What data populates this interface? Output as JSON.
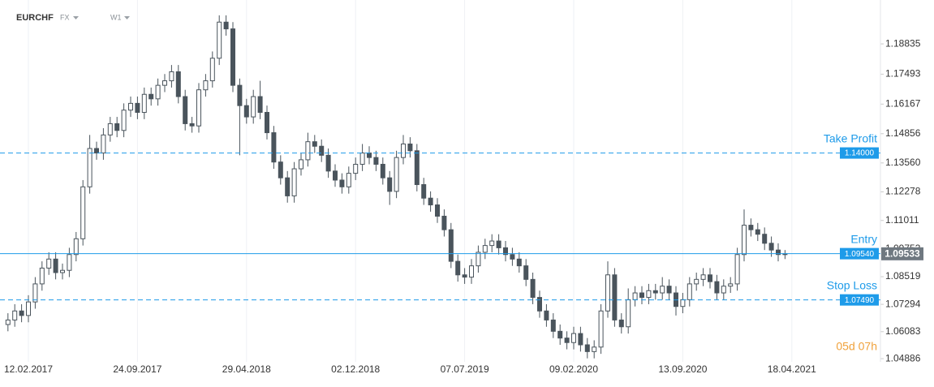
{
  "header": {
    "symbol": "EURCHF",
    "market": "FX",
    "timeframe": "W1"
  },
  "countdown": "05d 07h",
  "chart_data": {
    "type": "candlestick",
    "up_color": "#ffffff",
    "down_color": "#4a545c",
    "outline_color": "#4a545c",
    "grid": true,
    "categories": [
      null,
      null,
      null,
      "12.02.2017",
      null,
      null,
      null,
      null,
      null,
      null,
      null,
      null,
      null,
      null,
      null,
      null,
      null,
      null,
      null,
      "24.09.2017",
      null,
      null,
      null,
      null,
      null,
      null,
      null,
      null,
      null,
      null,
      null,
      null,
      null,
      null,
      null,
      "29.04.2018",
      null,
      null,
      null,
      null,
      null,
      null,
      null,
      null,
      null,
      null,
      null,
      null,
      null,
      null,
      null,
      "02.12.2018",
      null,
      null,
      null,
      null,
      null,
      null,
      null,
      null,
      null,
      null,
      null,
      null,
      null,
      null,
      null,
      "07.07.2019",
      null,
      null,
      null,
      null,
      null,
      null,
      null,
      null,
      null,
      null,
      null,
      null,
      null,
      null,
      null,
      "09.02.2020",
      null,
      null,
      null,
      null,
      null,
      null,
      null,
      null,
      null,
      null,
      null,
      null,
      null,
      null,
      null,
      "13.09.2020",
      null,
      null,
      null,
      null,
      null,
      null,
      null,
      null,
      null,
      null,
      null,
      null,
      null,
      null,
      null,
      "18.04.2021"
    ],
    "open": [
      1.064,
      1.066,
      1.07,
      1.068,
      1.074,
      1.082,
      1.089,
      1.093,
      1.087,
      1.088,
      1.095,
      1.102,
      1.125,
      1.142,
      1.14,
      1.148,
      1.153,
      1.15,
      1.159,
      1.162,
      1.158,
      1.166,
      1.164,
      1.17,
      1.172,
      1.176,
      1.165,
      1.153,
      1.152,
      1.168,
      1.172,
      1.182,
      1.198,
      1.195,
      1.17,
      1.161,
      1.156,
      1.165,
      1.158,
      1.149,
      1.136,
      1.129,
      1.121,
      1.133,
      1.137,
      1.145,
      1.143,
      1.139,
      1.132,
      1.128,
      1.125,
      1.131,
      1.135,
      1.14,
      1.138,
      1.135,
      1.129,
      1.123,
      1.138,
      1.144,
      1.141,
      1.126,
      1.12,
      1.117,
      1.112,
      1.106,
      1.092,
      1.086,
      1.085,
      1.09,
      1.096,
      1.099,
      1.101,
      1.098,
      1.095,
      1.093,
      1.09,
      1.084,
      1.076,
      1.07,
      1.066,
      1.061,
      1.058,
      1.056,
      1.06,
      1.055,
      1.052,
      1.054,
      1.07,
      1.086,
      1.066,
      1.063,
      1.075,
      1.078,
      1.076,
      1.079,
      1.078,
      1.081,
      1.078,
      1.072,
      1.075,
      1.082,
      1.084,
      1.086,
      1.083,
      1.078,
      1.081,
      1.082,
      1.095,
      1.108,
      1.106,
      1.104,
      1.1,
      1.097,
      1.095,
      null
    ],
    "high": [
      1.069,
      1.073,
      1.073,
      1.077,
      1.085,
      1.092,
      1.096,
      1.096,
      1.091,
      1.098,
      1.105,
      1.128,
      1.148,
      1.145,
      1.151,
      1.156,
      1.156,
      1.162,
      1.165,
      1.165,
      1.169,
      1.169,
      1.173,
      1.175,
      1.179,
      1.179,
      1.168,
      1.156,
      1.171,
      1.175,
      1.185,
      1.201,
      1.201,
      1.198,
      1.173,
      1.164,
      1.168,
      1.172,
      1.161,
      1.152,
      1.139,
      1.132,
      1.136,
      1.14,
      1.149,
      1.148,
      1.146,
      1.142,
      1.135,
      1.131,
      1.134,
      1.138,
      1.144,
      1.143,
      1.141,
      1.138,
      1.132,
      1.141,
      1.148,
      1.147,
      1.144,
      1.129,
      1.123,
      1.12,
      1.115,
      1.109,
      1.095,
      1.089,
      1.093,
      1.099,
      1.102,
      1.104,
      1.104,
      1.101,
      1.098,
      1.096,
      1.093,
      1.087,
      1.079,
      1.073,
      1.069,
      1.064,
      1.061,
      1.063,
      1.063,
      1.058,
      1.057,
      1.073,
      1.092,
      1.089,
      1.069,
      1.08,
      1.081,
      1.081,
      1.082,
      1.082,
      1.085,
      1.084,
      1.081,
      1.078,
      1.085,
      1.087,
      1.089,
      1.089,
      1.086,
      1.084,
      1.085,
      1.098,
      1.115,
      1.111,
      1.109,
      1.107,
      1.103,
      1.1,
      1.097,
      null
    ],
    "low": [
      1.061,
      1.063,
      1.065,
      1.065,
      1.071,
      1.079,
      1.086,
      1.084,
      1.084,
      1.085,
      1.092,
      1.099,
      1.122,
      1.137,
      1.137,
      1.145,
      1.147,
      1.147,
      1.156,
      1.155,
      1.155,
      1.161,
      1.161,
      1.167,
      1.169,
      1.162,
      1.15,
      1.149,
      1.149,
      1.165,
      1.169,
      1.179,
      1.192,
      1.167,
      1.139,
      1.153,
      1.153,
      1.155,
      1.146,
      1.133,
      1.126,
      1.118,
      1.118,
      1.13,
      1.134,
      1.14,
      1.136,
      1.129,
      1.125,
      1.122,
      1.122,
      1.128,
      1.132,
      1.135,
      1.132,
      1.126,
      1.117,
      1.12,
      1.135,
      1.138,
      1.123,
      1.117,
      1.114,
      1.109,
      1.103,
      1.089,
      1.083,
      1.082,
      1.082,
      1.087,
      1.093,
      1.096,
      1.095,
      1.092,
      1.09,
      1.087,
      1.081,
      1.073,
      1.067,
      1.063,
      1.058,
      1.055,
      1.053,
      1.053,
      1.052,
      1.049,
      1.049,
      1.051,
      1.067,
      1.063,
      1.06,
      1.06,
      1.072,
      1.073,
      1.073,
      1.075,
      1.075,
      1.075,
      1.068,
      1.069,
      1.072,
      1.079,
      1.081,
      1.08,
      1.075,
      1.075,
      1.078,
      1.079,
      1.092,
      1.103,
      1.101,
      1.097,
      1.094,
      1.092,
      1.093,
      null
    ],
    "close": [
      1.066,
      1.07,
      1.068,
      1.074,
      1.082,
      1.089,
      1.093,
      1.087,
      1.088,
      1.095,
      1.102,
      1.125,
      1.142,
      1.14,
      1.148,
      1.153,
      1.15,
      1.159,
      1.162,
      1.158,
      1.166,
      1.164,
      1.17,
      1.172,
      1.176,
      1.165,
      1.153,
      1.152,
      1.168,
      1.172,
      1.182,
      1.198,
      1.195,
      1.17,
      1.161,
      1.156,
      1.165,
      1.158,
      1.149,
      1.136,
      1.129,
      1.121,
      1.133,
      1.137,
      1.145,
      1.143,
      1.139,
      1.132,
      1.128,
      1.125,
      1.131,
      1.135,
      1.14,
      1.138,
      1.135,
      1.129,
      1.123,
      1.138,
      1.144,
      1.141,
      1.126,
      1.12,
      1.117,
      1.112,
      1.106,
      1.092,
      1.086,
      1.085,
      1.09,
      1.096,
      1.099,
      1.101,
      1.098,
      1.095,
      1.093,
      1.09,
      1.084,
      1.076,
      1.07,
      1.066,
      1.061,
      1.058,
      1.056,
      1.06,
      1.055,
      1.052,
      1.054,
      1.07,
      1.086,
      1.066,
      1.063,
      1.075,
      1.078,
      1.076,
      1.079,
      1.078,
      1.081,
      1.078,
      1.072,
      1.075,
      1.082,
      1.084,
      1.086,
      1.083,
      1.078,
      1.081,
      1.082,
      1.095,
      1.108,
      1.106,
      1.104,
      1.1,
      1.097,
      1.095,
      1.09533,
      null
    ],
    "ylim": [
      1.0417,
      1.2078
    ],
    "yticks": [
      1.04886,
      1.06083,
      1.07294,
      1.08519,
      1.09753,
      1.11011,
      1.12278,
      {
        "value": 1.1356,
        "label": "1.13560"
      },
      1.14856,
      1.16167,
      1.17493,
      1.18835
    ],
    "levels": [
      {
        "name": "Take Profit",
        "value": 1.14,
        "label": "1.14000",
        "style": "dashed",
        "color": "#1e9be9"
      },
      {
        "name": "Entry",
        "value": 1.0954,
        "label": "1.09540",
        "style": "solid",
        "color": "#1e9be9"
      },
      {
        "name": "Stop Loss",
        "value": 1.0749,
        "label": "1.07490",
        "style": "dashed",
        "color": "#1e9be9"
      }
    ],
    "last_price": {
      "value": 1.09533,
      "label": "1.09533",
      "color": "#6f7880"
    }
  }
}
